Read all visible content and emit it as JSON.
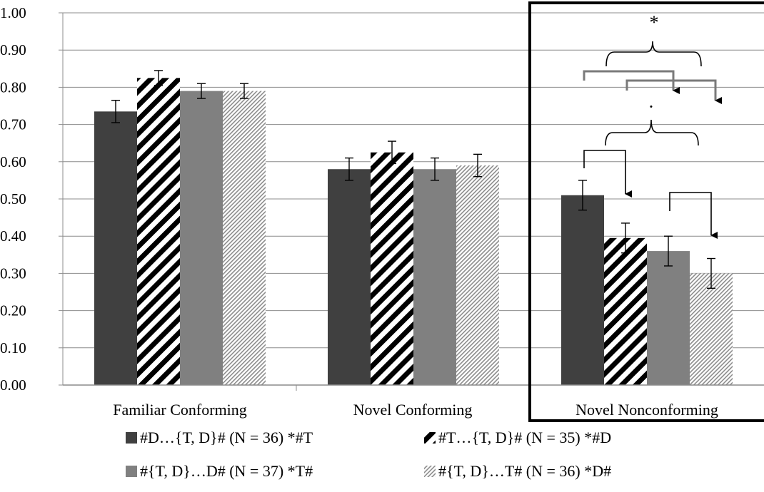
{
  "chart_data": {
    "type": "bar",
    "categories": [
      "Familiar Conforming",
      "Novel Conforming",
      "Novel Nonconforming"
    ],
    "ylim": [
      0,
      1.0
    ],
    "yticks": [
      "0.00",
      "0.10",
      "0.20",
      "0.30",
      "0.40",
      "0.50",
      "0.60",
      "0.70",
      "0.80",
      "0.90",
      "1.00"
    ],
    "grid": true,
    "legend_position": "bottom",
    "highlighted_category": "Novel Nonconforming",
    "series": [
      {
        "name": "#D…{T, D}# (N = 36) *#T",
        "values": [
          0.735,
          0.58,
          0.51
        ],
        "errors": [
          0.03,
          0.03,
          0.04
        ],
        "color": "#404040",
        "pattern": "solid"
      },
      {
        "name": "#T…{T, D}# (N = 35) *#D",
        "values": [
          0.825,
          0.625,
          0.395
        ],
        "errors": [
          0.02,
          0.03,
          0.04
        ],
        "color": "#000000",
        "pattern": "diagonal-bold"
      },
      {
        "name": "#{T, D}…D# (N = 37) *T#",
        "values": [
          0.79,
          0.58,
          0.36
        ],
        "errors": [
          0.02,
          0.03,
          0.04
        ],
        "color": "#808080",
        "pattern": "solid"
      },
      {
        "name": "#{T, D}…T# (N = 36) *D#",
        "values": [
          0.79,
          0.59,
          0.3
        ],
        "errors": [
          0.02,
          0.03,
          0.04
        ],
        "color": "#9a9a9a",
        "pattern": "diagonal-fine"
      }
    ],
    "annotations": {
      "upper_significance": "*",
      "lower_significance": "·"
    }
  }
}
